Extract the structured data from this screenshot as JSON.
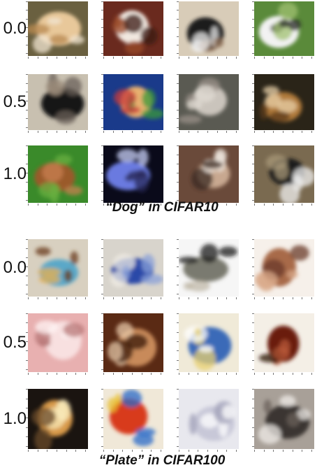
{
  "panels": [
    {
      "caption": "“Dog” in CIFAR10",
      "rows": [
        {
          "label": "0.0",
          "images": [
            {
              "icon": "dog-photo-pekingese",
              "palette": [
                "#6a6040",
                "#e8c89a",
                "#f2e6d2",
                "#b88a50"
              ]
            },
            {
              "icon": "dog-photo-cavalier",
              "palette": [
                "#6a2a1e",
                "#f1e8e0",
                "#9a4a28",
                "#3a1a14"
              ]
            },
            {
              "icon": "dog-photo-black-white",
              "palette": [
                "#d8ccb8",
                "#1a1a1a",
                "#f0f0f0",
                "#8a6a50"
              ]
            },
            {
              "icon": "dog-photo-on-grass",
              "palette": [
                "#5a8a3a",
                "#f2f2f2",
                "#2a2a2a",
                "#a0c070"
              ]
            }
          ]
        },
        {
          "label": "0.5",
          "images": [
            {
              "icon": "dog-photo-black-dog-sitting",
              "palette": [
                "#c8c0b0",
                "#141414",
                "#6a6058",
                "#9a8a78"
              ]
            },
            {
              "icon": "dog-photo-puppy-blue-blanket",
              "palette": [
                "#1a3a8a",
                "#e8b070",
                "#3a9a3a",
                "#c83a3a"
              ]
            },
            {
              "icon": "dog-photo-white-fluffy",
              "palette": [
                "#5a5a52",
                "#cac4bc",
                "#9a9088",
                "#e0dcd4"
              ]
            },
            {
              "icon": "dog-photo-collie-face",
              "palette": [
                "#2a2418",
                "#b07a3a",
                "#e8d0a8",
                "#5a3a1a"
              ]
            }
          ]
        },
        {
          "label": "1.0",
          "images": [
            {
              "icon": "dog-photo-brown-on-grass",
              "palette": [
                "#3a8a2a",
                "#9a5a2a",
                "#6ab040",
                "#c88050"
              ]
            },
            {
              "icon": "dog-photo-blue-tinted",
              "palette": [
                "#0a0a1a",
                "#6a7ae0",
                "#2a2a5a",
                "#c8d0f8"
              ]
            },
            {
              "icon": "dog-photo-dog-face-closeup",
              "palette": [
                "#6a4a3a",
                "#c8a890",
                "#f0e8e0",
                "#3a2a20"
              ]
            },
            {
              "icon": "dog-photo-black-white-playing",
              "palette": [
                "#7a6a50",
                "#1a1a1a",
                "#f0f0f0",
                "#a89878"
              ]
            }
          ]
        }
      ]
    },
    {
      "caption": "“Plate” in CIFAR100",
      "rows": [
        {
          "label": "0.0",
          "images": [
            {
              "icon": "plate-photo-decorated-bowl",
              "palette": [
                "#d8d0c0",
                "#5aa8c8",
                "#6a3a1a",
                "#e8b050"
              ]
            },
            {
              "icon": "plate-photo-blue-bowl",
              "palette": [
                "#d8d4cc",
                "#2a4aa8",
                "#8aa0d8",
                "#f0ece4"
              ]
            },
            {
              "icon": "plate-photo-goblet-bowl",
              "palette": [
                "#f6f6f6",
                "#7a7a70",
                "#1a1a1a",
                "#c0b8a8"
              ]
            },
            {
              "icon": "plate-photo-wooden-bowl",
              "palette": [
                "#f6f0ea",
                "#a86a4a",
                "#d8a888",
                "#6a3a2a"
              ]
            }
          ]
        },
        {
          "label": "0.5",
          "images": [
            {
              "icon": "plate-photo-pink-bowl",
              "palette": [
                "#e8b0b0",
                "#f8e0e0",
                "#b87878",
                "#fff4f4"
              ]
            },
            {
              "icon": "plate-photo-rusty-plate",
              "palette": [
                "#5a2a14",
                "#c88a5a",
                "#e8c8a8",
                "#3a1a0a"
              ]
            },
            {
              "icon": "plate-photo-paw-plate",
              "palette": [
                "#f0ead8",
                "#3a6ab8",
                "#e8d070",
                "#ffffff"
              ]
            },
            {
              "icon": "plate-photo-dark-red-bowl",
              "palette": [
                "#f4efe6",
                "#6a1a0a",
                "#b85a3a",
                "#2a0a04"
              ]
            }
          ]
        },
        {
          "label": "1.0",
          "images": [
            {
              "icon": "plate-photo-lamp-bowl",
              "palette": [
                "#1a1410",
                "#d89a4a",
                "#f8e8b8",
                "#6a4a2a"
              ]
            },
            {
              "icon": "plate-photo-colorful-cup",
              "palette": [
                "#f0e8d8",
                "#d83a1a",
                "#2a6ac8",
                "#e8c030"
              ]
            },
            {
              "icon": "plate-photo-glass-bowl",
              "palette": [
                "#e8e8ee",
                "#c8c8d8",
                "#ffffff",
                "#a0a0b8"
              ]
            },
            {
              "icon": "plate-photo-window-bowl",
              "palette": [
                "#a8a098",
                "#3a3430",
                "#f0ece8",
                "#6a605a"
              ]
            }
          ]
        }
      ]
    }
  ]
}
